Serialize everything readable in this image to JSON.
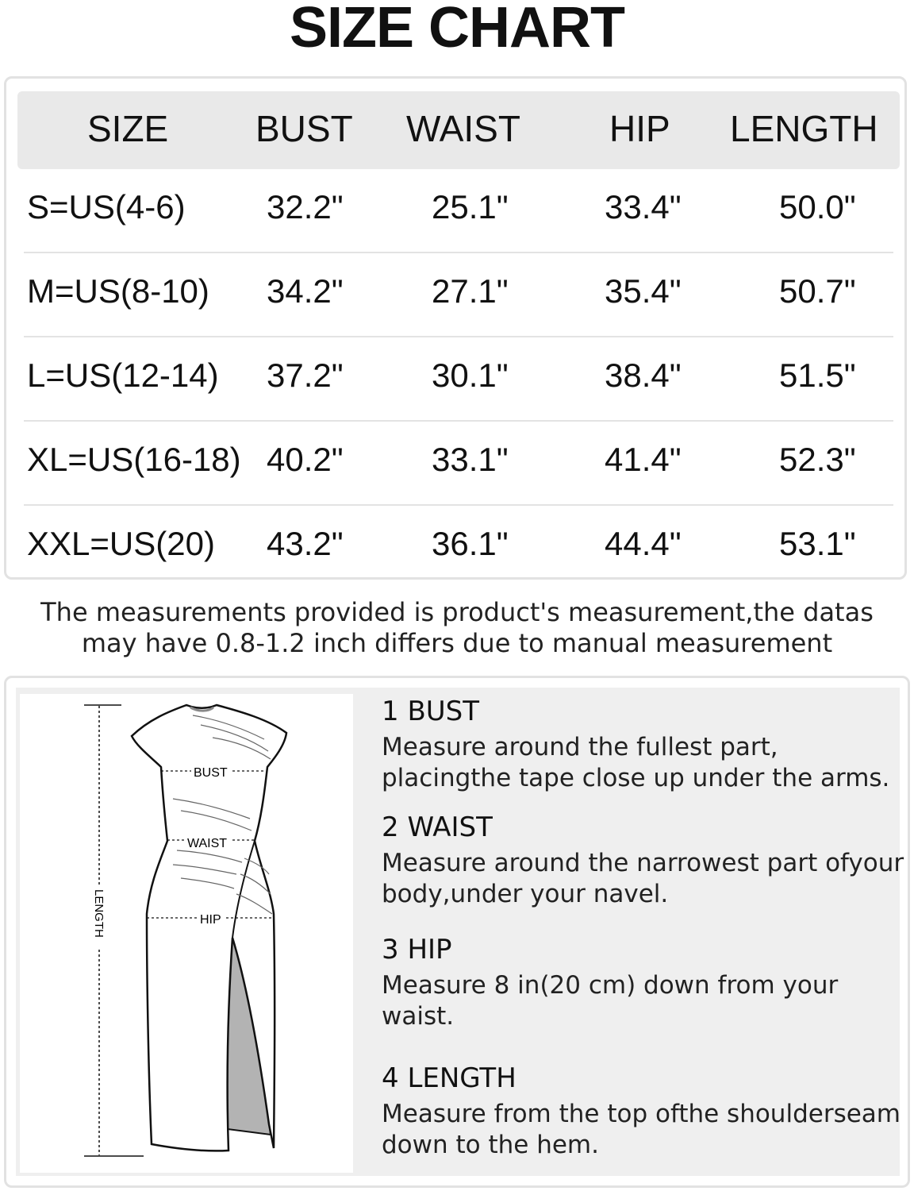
{
  "title": "SIZE CHART",
  "table": {
    "headers": [
      "SIZE",
      "BUST",
      "WAIST",
      "HIP",
      "LENGTH"
    ],
    "rows": [
      [
        "S=US(4-6)",
        "32.2\"",
        "25.1\"",
        "33.4\"",
        "50.0\""
      ],
      [
        "M=US(8-10)",
        "34.2\"",
        "27.1\"",
        "35.4\"",
        "50.7\""
      ],
      [
        "L=US(12-14)",
        "37.2\"",
        "30.1\"",
        "38.4\"",
        "51.5\""
      ],
      [
        "XL=US(16-18)",
        "40.2\"",
        "33.1\"",
        "41.4\"",
        "52.3\""
      ],
      [
        "XXL=US(20)",
        "43.2\"",
        "36.1\"",
        "44.4\"",
        "53.1\""
      ]
    ]
  },
  "note": {
    "line1": "The measurements provided is product's  measurement,the datas",
    "line2": "may have 0.8-1.2  inch differs due to manual measurement"
  },
  "figure": {
    "labels": {
      "bust": "BUST",
      "waist": "WAIST",
      "hip": "HIP",
      "length": "LENGTH"
    },
    "icon": "dress-diagram"
  },
  "steps": [
    {
      "title": "1 BUST",
      "text": "Measure around the fullest part, placingthe tape close up under the arms."
    },
    {
      "title": "2 WAIST",
      "text": "Measure around the narrowest part ofyour body,under your navel."
    },
    {
      "title": "3 HIP",
      "text": "Measure 8 in(20 cm) down from your waist."
    },
    {
      "title": "4 LENGTH",
      "text": "Measure from the top ofthe shoulderseam down to the hem."
    }
  ],
  "colors": {
    "header_bg": "#e9e9e9",
    "border": "#e2e2e2",
    "panel_bg": "#efefef",
    "slit": "#b3b3b3"
  }
}
